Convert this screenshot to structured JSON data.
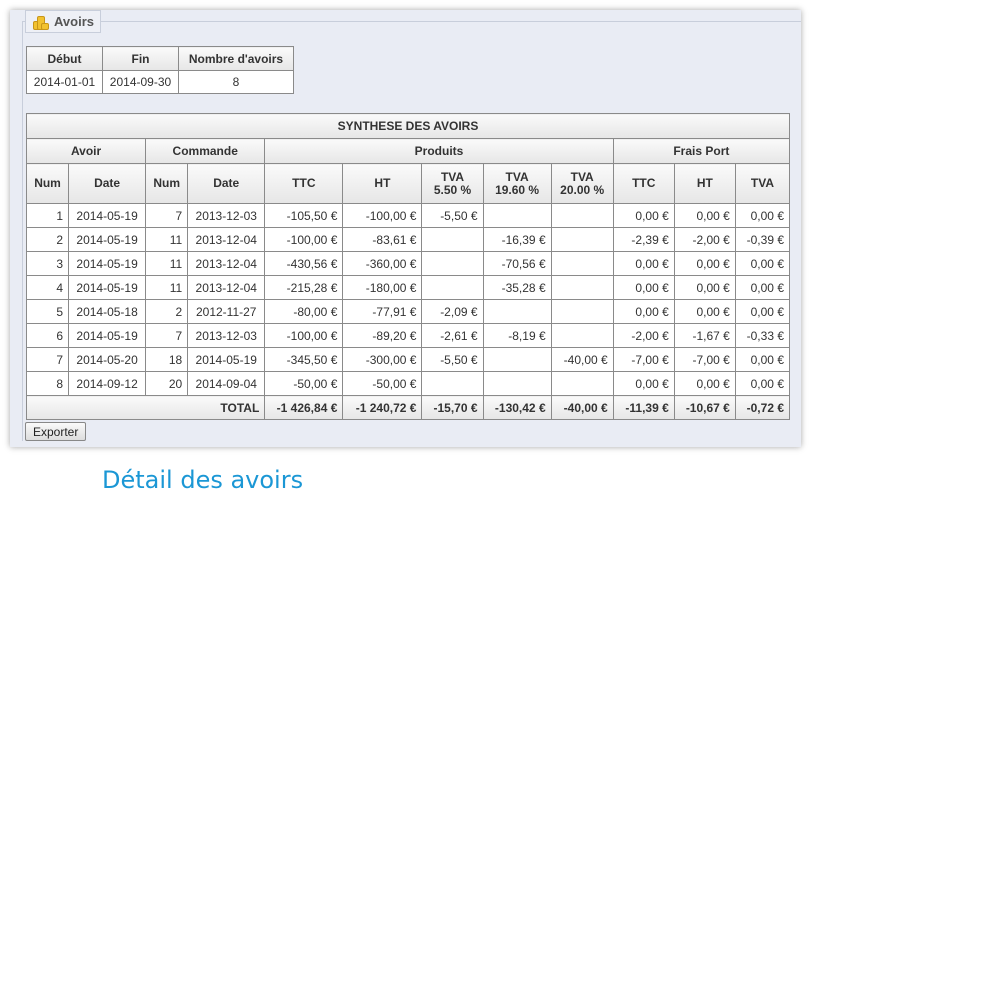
{
  "legend": {
    "title": "Avoirs",
    "icon": "coins-icon"
  },
  "summary": {
    "headers": [
      "Début",
      "Fin",
      "Nombre d'avoirs"
    ],
    "values": [
      "2014-01-01",
      "2014-09-30",
      "8"
    ]
  },
  "synth": {
    "title": "SYNTHESE DES AVOIRS",
    "groups": [
      "Avoir",
      "Commande",
      "Produits",
      "Frais Port"
    ],
    "columns": [
      "Num",
      "Date",
      "Num",
      "Date",
      "TTC",
      "HT",
      "TVA\n5.50 %",
      "TVA\n19.60 %",
      "TVA\n20.00 %",
      "TTC",
      "HT",
      "TVA"
    ],
    "rows": [
      [
        "1",
        "2014-05-19",
        "7",
        "2013-12-03",
        "-105,50 €",
        "-100,00 €",
        "-5,50 €",
        "",
        "",
        "0,00 €",
        "0,00 €",
        "0,00 €"
      ],
      [
        "2",
        "2014-05-19",
        "11",
        "2013-12-04",
        "-100,00 €",
        "-83,61 €",
        "",
        "-16,39 €",
        "",
        "-2,39 €",
        "-2,00 €",
        "-0,39 €"
      ],
      [
        "3",
        "2014-05-19",
        "11",
        "2013-12-04",
        "-430,56 €",
        "-360,00 €",
        "",
        "-70,56 €",
        "",
        "0,00 €",
        "0,00 €",
        "0,00 €"
      ],
      [
        "4",
        "2014-05-19",
        "11",
        "2013-12-04",
        "-215,28 €",
        "-180,00 €",
        "",
        "-35,28 €",
        "",
        "0,00 €",
        "0,00 €",
        "0,00 €"
      ],
      [
        "5",
        "2014-05-18",
        "2",
        "2012-11-27",
        "-80,00 €",
        "-77,91 €",
        "-2,09 €",
        "",
        "",
        "0,00 €",
        "0,00 €",
        "0,00 €"
      ],
      [
        "6",
        "2014-05-19",
        "7",
        "2013-12-03",
        "-100,00 €",
        "-89,20 €",
        "-2,61 €",
        "-8,19 €",
        "",
        "-2,00 €",
        "-1,67 €",
        "-0,33 €"
      ],
      [
        "7",
        "2014-05-20",
        "18",
        "2014-05-19",
        "-345,50 €",
        "-300,00 €",
        "-5,50 €",
        "",
        "-40,00 €",
        "-7,00 €",
        "-7,00 €",
        "0,00 €"
      ],
      [
        "8",
        "2014-09-12",
        "20",
        "2014-09-04",
        "-50,00 €",
        "-50,00 €",
        "",
        "",
        "",
        "0,00 €",
        "0,00 €",
        "0,00 €"
      ]
    ],
    "total_label": "TOTAL",
    "totals": [
      "-1 426,84 €",
      "-1 240,72 €",
      "-15,70 €",
      "-130,42 €",
      "-40,00 €",
      "-11,39 €",
      "-10,67 €",
      "-0,72 €"
    ]
  },
  "export_label": "Exporter",
  "page_title": "Détail des avoirs"
}
